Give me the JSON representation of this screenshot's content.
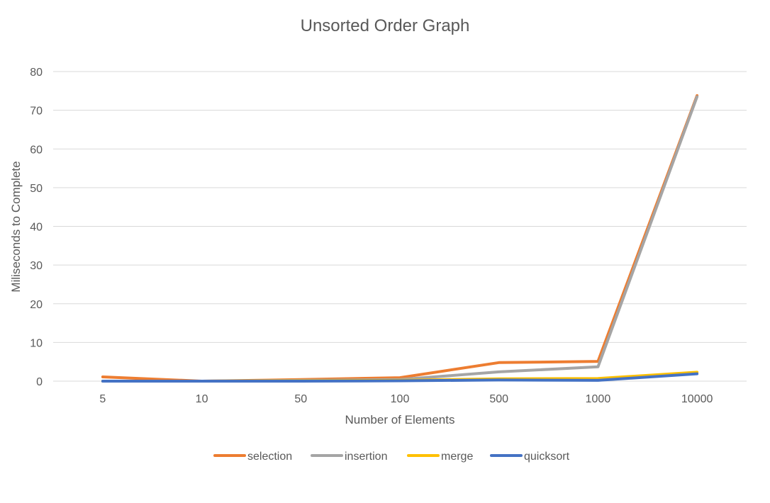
{
  "chart_data": {
    "type": "line",
    "title": "Unsorted Order Graph",
    "xlabel": "Number of Elements",
    "ylabel": "Miliseconds to Complete",
    "categories": [
      "5",
      "10",
      "50",
      "100",
      "500",
      "1000",
      "10000"
    ],
    "ylim": [
      0,
      80
    ],
    "yticks": [
      0,
      10,
      20,
      30,
      40,
      50,
      60,
      70,
      80
    ],
    "grid": true,
    "legend_position": "bottom",
    "series": [
      {
        "name": "selection",
        "color": "#ED7D31",
        "values": [
          1.1,
          0.0,
          0.4,
          0.9,
          4.8,
          5.1,
          73.8
        ]
      },
      {
        "name": "insertion",
        "color": "#A5A5A5",
        "values": [
          0.0,
          0.0,
          0.2,
          0.4,
          2.4,
          3.7,
          73.5
        ]
      },
      {
        "name": "merge",
        "color": "#FFC000",
        "values": [
          0.0,
          0.0,
          0.1,
          0.2,
          0.6,
          0.7,
          2.3
        ]
      },
      {
        "name": "quicksort",
        "color": "#4472C4",
        "values": [
          0.0,
          0.0,
          0.0,
          0.1,
          0.3,
          0.2,
          1.9
        ]
      }
    ]
  }
}
